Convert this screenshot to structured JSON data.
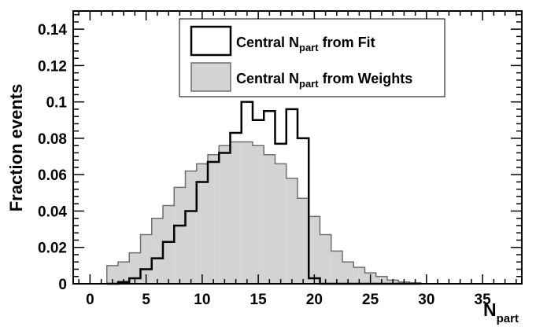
{
  "chart_data": {
    "type": "histogram",
    "xlabel": {
      "main": "N",
      "sub": "part"
    },
    "ylabel": "Fraction events",
    "xlim": [
      -1.5,
      38.5
    ],
    "ylim": [
      0,
      0.15
    ],
    "xticks": [
      "0",
      "5",
      "10",
      "15",
      "20",
      "25",
      "30",
      "35"
    ],
    "xtick_values": [
      0,
      5,
      10,
      15,
      20,
      25,
      30,
      35
    ],
    "yticks": [
      "0",
      "0.02",
      "0.04",
      "0.06",
      "0.08",
      "0.1",
      "0.12",
      "0.14"
    ],
    "ytick_values": [
      0,
      0.02,
      0.04,
      0.06,
      0.08,
      0.1,
      0.12,
      0.14
    ],
    "bin_width": 1,
    "bin_start": 1.5,
    "grid": false,
    "legend_position": "top-right",
    "series": [
      {
        "name": "Central N_part from Weights",
        "legend": {
          "pre": "Central N",
          "sub": "part",
          "post": " from Weights"
        },
        "style": "filled",
        "fill": "#d3d3d3",
        "stroke": "#6e6e6e",
        "values": [
          0.01,
          0.012,
          0.017,
          0.027,
          0.036,
          0.043,
          0.053,
          0.062,
          0.066,
          0.071,
          0.076,
          0.078,
          0.078,
          0.076,
          0.071,
          0.066,
          0.058,
          0.047,
          0.037,
          0.027,
          0.018,
          0.012,
          0.009,
          0.006,
          0.004,
          0.002,
          0.001,
          0.0005
        ]
      },
      {
        "name": "Central N_part from Fit",
        "legend": {
          "pre": "Central N",
          "sub": "part",
          "post": " from Fit"
        },
        "style": "outline",
        "fill": "none",
        "stroke": "#000000",
        "values": [
          0,
          0.001,
          0.003,
          0.008,
          0.014,
          0.023,
          0.032,
          0.04,
          0.056,
          0.067,
          0.072,
          0.083,
          0.1,
          0.09,
          0.095,
          0.077,
          0.096,
          0.08,
          0.003,
          0,
          0,
          0,
          0,
          0,
          0,
          0,
          0,
          0
        ]
      }
    ]
  }
}
